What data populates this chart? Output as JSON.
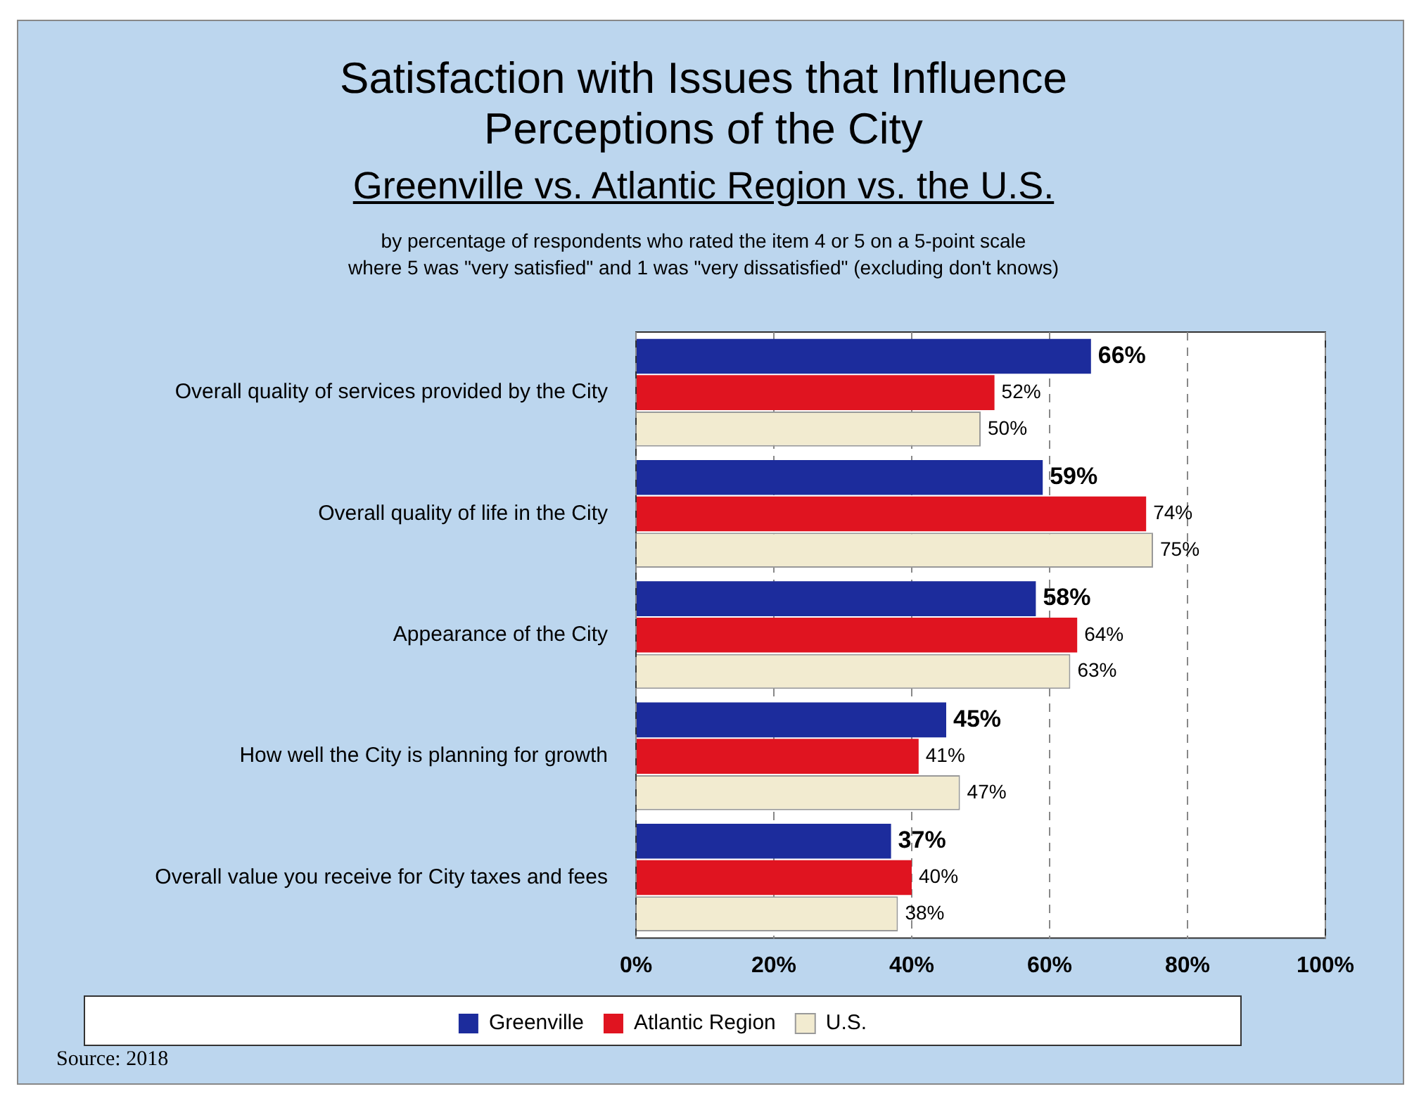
{
  "chart_data": {
    "type": "bar",
    "orientation": "horizontal",
    "title": "Satisfaction with Issues that Influence Perceptions of the City",
    "subtitle": "Greenville vs. Atlantic Region vs. the U.S.",
    "annotations": [
      "by percentage of respondents who rated the item 4 or 5 on a 5-point scale\nwhere 5 was \"very satisfied\" and 1 was \"very dissatisfied\" (excluding don't knows)",
      "Source:  2018"
    ],
    "categories": [
      "Overall quality of services provided by the City",
      "Overall quality of life in the City",
      "Appearance of the City",
      "How well the City is planning for growth",
      "Overall value you receive for City taxes and fees"
    ],
    "series": [
      {
        "name": "Greenville",
        "color": "#1c2c9c",
        "values": [
          66,
          59,
          58,
          45,
          37
        ],
        "value_labels": [
          "66%",
          "59%",
          "58%",
          "45%",
          "37%"
        ]
      },
      {
        "name": "Atlantic Region",
        "color": "#e01420",
        "values": [
          52,
          74,
          64,
          41,
          40
        ],
        "value_labels": [
          "52%",
          "74%",
          "64%",
          "41%",
          "40%"
        ]
      },
      {
        "name": "U.S.",
        "color": "#f2ebd0",
        "values": [
          50,
          75,
          63,
          47,
          38
        ],
        "value_labels": [
          "50%",
          "75%",
          "63%",
          "47%",
          "38%"
        ]
      }
    ],
    "xlim": [
      0,
      100
    ],
    "xticks": [
      {
        "value": 0,
        "label": "0%"
      },
      {
        "value": 20,
        "label": "20%"
      },
      {
        "value": 40,
        "label": "40%"
      },
      {
        "value": 60,
        "label": "60%"
      },
      {
        "value": 80,
        "label": "80%"
      },
      {
        "value": 100,
        "label": "100%"
      }
    ],
    "grid": "x",
    "legend": "bottom"
  }
}
